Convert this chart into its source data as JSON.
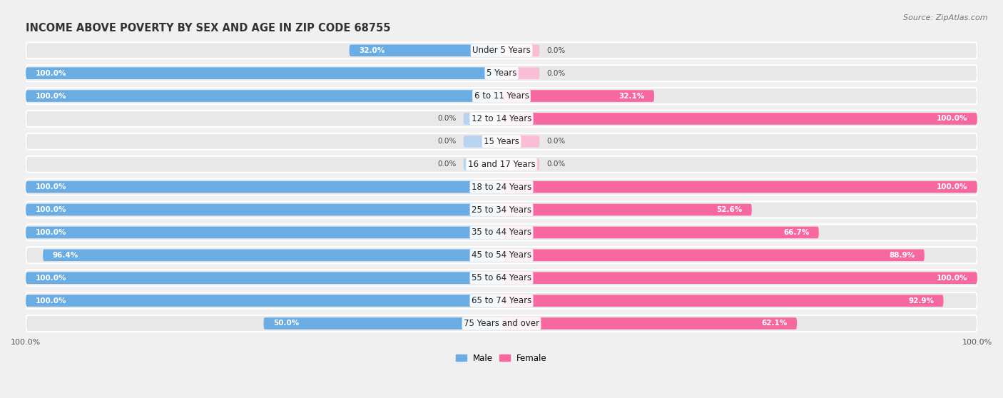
{
  "title": "INCOME ABOVE POVERTY BY SEX AND AGE IN ZIP CODE 68755",
  "source": "Source: ZipAtlas.com",
  "categories": [
    "Under 5 Years",
    "5 Years",
    "6 to 11 Years",
    "12 to 14 Years",
    "15 Years",
    "16 and 17 Years",
    "18 to 24 Years",
    "25 to 34 Years",
    "35 to 44 Years",
    "45 to 54 Years",
    "55 to 64 Years",
    "65 to 74 Years",
    "75 Years and over"
  ],
  "male_values": [
    32.0,
    100.0,
    100.0,
    0.0,
    0.0,
    0.0,
    100.0,
    100.0,
    100.0,
    96.4,
    100.0,
    100.0,
    50.0
  ],
  "female_values": [
    0.0,
    0.0,
    32.1,
    100.0,
    0.0,
    0.0,
    100.0,
    52.6,
    66.7,
    88.9,
    100.0,
    92.9,
    62.1
  ],
  "male_color": "#6aace4",
  "male_color_light": "#b8d4f0",
  "female_color": "#f768a1",
  "female_color_light": "#fbbdd6",
  "male_label": "Male",
  "female_label": "Female",
  "max_value": 100.0,
  "bg_color": "#f0f0f0",
  "row_bg_color": "#e8e8e8",
  "title_fontsize": 10.5,
  "label_fontsize": 8.5,
  "tick_fontsize": 8,
  "source_fontsize": 8,
  "value_fontsize": 7.5
}
